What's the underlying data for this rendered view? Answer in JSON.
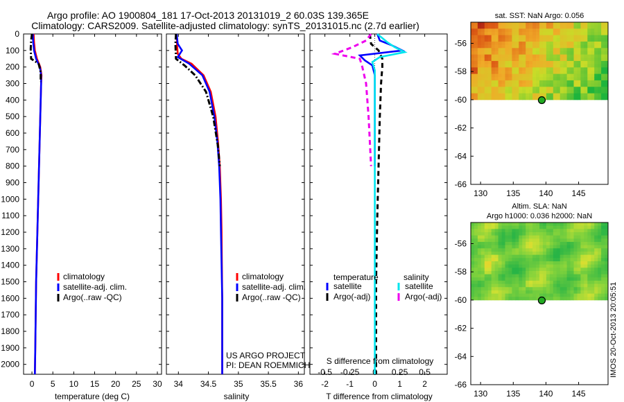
{
  "title_line1": "Argo profile: AO 1900804_181 17-Oct-2013 20131019_2 60.03S 139.365E",
  "title_line2": "Climatology: CARS2009. Satellite-adjusted climatology: synTS_20131015.nc (2.7d earlier)",
  "colors": {
    "climatology": "#ff0000",
    "satellite": "#0000ff",
    "argo": "#000000",
    "sal_satellite": "#00e5ee",
    "sal_argo": "#ee00ee",
    "land": "#ffffff"
  },
  "chart_data": [
    {
      "id": "temperature",
      "type": "line",
      "xlabel": "temperature (deg C)",
      "xlim": [
        -2,
        31
      ],
      "xticks": [
        0,
        5,
        10,
        15,
        20,
        25,
        30
      ],
      "xtick_labels": [
        "0",
        "5",
        "10",
        "15",
        "20",
        "25",
        "30"
      ],
      "ylim": [
        2060,
        0
      ],
      "yticks": [
        0,
        100,
        200,
        300,
        400,
        500,
        600,
        700,
        800,
        900,
        1000,
        1100,
        1200,
        1300,
        1400,
        1500,
        1600,
        1700,
        1800,
        1900,
        2000
      ],
      "legend": [
        "climatology",
        "satellite-adj. clim.",
        "Argo(..raw -QC)"
      ],
      "series": [
        {
          "name": "climatology",
          "style": "solid",
          "color": "#ff0000",
          "x": [
            0.4,
            0.5,
            0.7,
            1.2,
            2.0,
            2.3,
            2.2,
            2.1,
            2.0,
            1.9,
            1.8,
            1.7,
            1.6,
            1.5,
            1.4,
            1.3,
            1.2,
            1.1,
            1.0,
            0.9,
            0.8,
            0.7
          ],
          "y": [
            0,
            50,
            100,
            150,
            200,
            250,
            300,
            400,
            500,
            600,
            700,
            800,
            900,
            1000,
            1100,
            1200,
            1300,
            1400,
            1500,
            1700,
            1900,
            2060
          ]
        },
        {
          "name": "satellite-adj. clim.",
          "style": "solid",
          "color": "#0000ff",
          "x": [
            0.2,
            0.3,
            0.5,
            1.0,
            1.9,
            2.2,
            2.2,
            2.1,
            2.0,
            1.9,
            1.8,
            1.7,
            1.6,
            1.5,
            1.4,
            1.3,
            1.2,
            1.1,
            1.0,
            0.9,
            0.8,
            0.7
          ],
          "y": [
            0,
            50,
            100,
            150,
            200,
            250,
            300,
            400,
            500,
            600,
            700,
            800,
            900,
            1000,
            1100,
            1200,
            1300,
            1400,
            1500,
            1700,
            1900,
            2060
          ]
        },
        {
          "name": "Argo(..raw -QC)",
          "style": "dashdot",
          "color": "#000000",
          "x": [
            0.0,
            -0.2,
            -0.3,
            -0.2,
            1.6,
            2.1,
            2.1
          ],
          "y": [
            0,
            40,
            90,
            150,
            180,
            230,
            290
          ]
        }
      ]
    },
    {
      "id": "salinity",
      "type": "line",
      "xlabel": "salinity",
      "xlim": [
        33.8,
        36.1
      ],
      "xticks": [
        34,
        34.5,
        35,
        35.5,
        36
      ],
      "xtick_labels": [
        "34",
        "34.5",
        "35",
        "35.5",
        "36"
      ],
      "ylim": [
        2060,
        0
      ],
      "legend": [
        "climatology",
        "satellite-adj. clim.",
        "Argo(..raw -QC)"
      ],
      "annotations": [
        "US ARGO PROJECT",
        "PI: DEAN ROEMMICH"
      ],
      "series": [
        {
          "name": "climatology",
          "style": "solid",
          "color": "#ff0000",
          "x": [
            33.97,
            33.98,
            33.99,
            34.05,
            34.22,
            34.42,
            34.54,
            34.62,
            34.66,
            34.69,
            34.71,
            34.72,
            34.725,
            34.73,
            34.73,
            34.73
          ],
          "y": [
            0,
            80,
            120,
            150,
            180,
            250,
            350,
            500,
            650,
            800,
            1000,
            1200,
            1400,
            1600,
            1800,
            2060
          ]
        },
        {
          "name": "satellite-adj. clim.",
          "style": "solid",
          "color": "#0000ff",
          "x": [
            33.97,
            33.99,
            34.06,
            33.99,
            34.18,
            34.4,
            34.52,
            34.6,
            34.65,
            34.68,
            34.7,
            34.71,
            34.72,
            34.73,
            34.73,
            34.73
          ],
          "y": [
            0,
            60,
            100,
            140,
            180,
            250,
            350,
            500,
            650,
            800,
            1000,
            1200,
            1400,
            1600,
            1800,
            2060
          ]
        },
        {
          "name": "Argo(..raw -QC)",
          "style": "dashdot",
          "color": "#000000",
          "x": [
            33.96,
            33.95,
            33.96,
            34.1,
            34.28,
            34.46,
            34.58,
            34.66,
            34.69
          ],
          "y": [
            0,
            60,
            150,
            190,
            250,
            350,
            500,
            680,
            800
          ]
        }
      ]
    },
    {
      "id": "differences",
      "type": "line",
      "xlabel": "T difference from climatology",
      "top_label": "S difference from climatology",
      "xlim": [
        -2.6,
        2.9
      ],
      "xticks": [
        -2,
        -1,
        0,
        1,
        2
      ],
      "xtick_labels": [
        "-2",
        "-1",
        "0",
        "1",
        "2"
      ],
      "sal_xticks": [
        -0.5,
        -0.25,
        0,
        0.25,
        0.5
      ],
      "sal_xtick_labels": [
        "-0.5",
        "-0.25",
        "0",
        "0.25",
        "0.5"
      ],
      "ylim": [
        2060,
        0
      ],
      "legend_headers": [
        "temperature",
        "salinity"
      ],
      "legend": [
        "satellite",
        "Argo(-adj)",
        "satellite",
        "Argo(-adj)"
      ],
      "series": [
        {
          "name": "satellite",
          "group": "temperature",
          "style": "solid",
          "color": "#0000ff",
          "x": [
            0.1,
            0.2,
            0.7,
            1.1,
            -0.6,
            -0.4,
            -0.1,
            0.0,
            0.0,
            0.0
          ],
          "y": [
            0,
            40,
            70,
            100,
            130,
            160,
            190,
            250,
            400,
            800
          ]
        },
        {
          "name": "Argo(-adj)",
          "group": "temperature",
          "style": "dashed",
          "color": "#000000",
          "x": [
            -0.2,
            -0.15,
            0.15,
            0.3,
            0.3,
            0.25,
            0.2,
            0.15,
            0.1,
            0.05,
            0.05
          ],
          "y": [
            0,
            60,
            100,
            150,
            200,
            300,
            500,
            800,
            1100,
            1500,
            2060
          ]
        },
        {
          "name": "satellite",
          "group": "salinity",
          "style": "solid",
          "color": "#00e5ee",
          "x": [
            0.1,
            0.5,
            0.8,
            1.2,
            0.2,
            -0.1,
            0.0,
            0.0,
            0.0,
            0.0
          ],
          "y": [
            0,
            50,
            80,
            110,
            140,
            170,
            220,
            500,
            1200,
            2060
          ]
        },
        {
          "name": "Argo(-adj)",
          "group": "salinity",
          "style": "dashed",
          "color": "#ee00ee",
          "x": [
            -0.15,
            -0.35,
            -0.9,
            -1.6,
            -0.6,
            -0.5,
            -0.35,
            -0.25,
            -0.15
          ],
          "y": [
            0,
            40,
            80,
            120,
            150,
            200,
            300,
            500,
            800
          ]
        }
      ]
    },
    {
      "id": "sst-map",
      "type": "heatmap",
      "title": "sat. SST: NaN Argo: 0.056",
      "xlim": [
        128.5,
        149.5
      ],
      "ylim": [
        -66,
        -54.5
      ],
      "xticks": [
        130,
        135,
        140,
        145
      ],
      "yticks": [
        -56,
        -58,
        -60,
        -62,
        -64,
        -66
      ],
      "data_extent_lat": [
        -60,
        -54.5
      ],
      "argo_position": {
        "lon": 139.365,
        "lat": -60.03
      }
    },
    {
      "id": "sla-map",
      "type": "heatmap",
      "title_line1": "Altim. SLA: NaN",
      "title_line2": "Argo h1000: 0.036 h2000: NaN",
      "xlim": [
        128.5,
        149.5
      ],
      "ylim": [
        -66,
        -54.5
      ],
      "xticks": [
        130,
        135,
        140,
        145
      ],
      "yticks": [
        -56,
        -58,
        -60,
        -62,
        -64,
        -66
      ],
      "data_extent_lat": [
        -60,
        -54.5
      ],
      "argo_position": {
        "lon": 139.365,
        "lat": -60.03
      }
    }
  ],
  "side_stamp": "IMOS 20-Oct-2013 20:05:51"
}
